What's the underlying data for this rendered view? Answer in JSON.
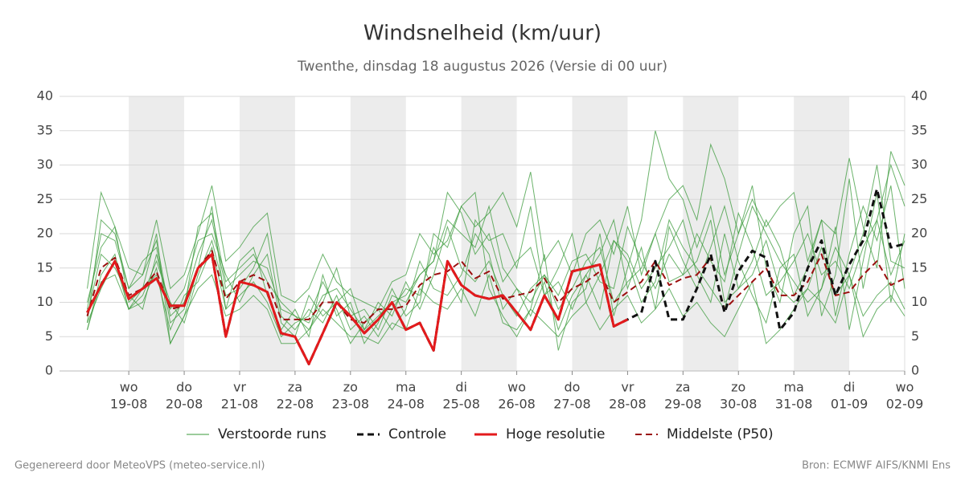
{
  "chart_data": {
    "type": "line",
    "title": "Windsnelheid (km/uur)",
    "subtitle": "Twenthe, dinsdag 18 augustus 2026 (Versie di 00 uur)",
    "footer_left": "Gegenereerd door MeteoVPS (meteo-service.nl)",
    "footer_right": "Bron: ECMWF AIFS/KNMI Ens",
    "xlim": [
      -0.25,
      15
    ],
    "ylim": [
      0,
      40
    ],
    "yticks": [
      0,
      5,
      10,
      15,
      20,
      25,
      30,
      35,
      40
    ],
    "xticks": [
      {
        "value": 1,
        "label": "wo",
        "date": "19-08"
      },
      {
        "value": 2,
        "label": "do",
        "date": "20-08"
      },
      {
        "value": 3,
        "label": "vr",
        "date": "21-08"
      },
      {
        "value": 4,
        "label": "za",
        "date": "22-08"
      },
      {
        "value": 5,
        "label": "zo",
        "date": "23-08"
      },
      {
        "value": 6,
        "label": "ma",
        "date": "24-08"
      },
      {
        "value": 7,
        "label": "di",
        "date": "25-08"
      },
      {
        "value": 8,
        "label": "wo",
        "date": "26-08"
      },
      {
        "value": 9,
        "label": "do",
        "date": "27-08"
      },
      {
        "value": 10,
        "label": "vr",
        "date": "28-08"
      },
      {
        "value": 11,
        "label": "za",
        "date": "29-08"
      },
      {
        "value": 12,
        "label": "zo",
        "date": "30-08"
      },
      {
        "value": 13,
        "label": "ma",
        "date": "31-08"
      },
      {
        "value": 14,
        "label": "di",
        "date": "01-09"
      },
      {
        "value": 15,
        "label": "wo",
        "date": "02-09"
      }
    ],
    "grid": true,
    "x": [
      0.25,
      0.5,
      0.75,
      1,
      1.25,
      1.5,
      1.75,
      2,
      2.25,
      2.5,
      2.75,
      3,
      3.25,
      3.5,
      3.75,
      4,
      4.25,
      4.5,
      4.75,
      5,
      5.25,
      5.5,
      5.75,
      6,
      6.25,
      6.5,
      6.75,
      7,
      7.25,
      7.5,
      7.75,
      8,
      8.25,
      8.5,
      8.75,
      9,
      9.25,
      9.5,
      9.75,
      10,
      10.25,
      10.5,
      10.75,
      11,
      11.25,
      11.5,
      11.75,
      12,
      12.25,
      12.5,
      12.75,
      13,
      13.25,
      13.5,
      13.75,
      14,
      14.25,
      14.5,
      14.75,
      15
    ],
    "ensemble": {
      "name": "Verstoorde runs",
      "color": "#3a9a3a",
      "members": [
        [
          7,
          22,
          20,
          12,
          14,
          19,
          8,
          10,
          17,
          22,
          12,
          14,
          16,
          15,
          9,
          8,
          7,
          11,
          12,
          9,
          6,
          8,
          10,
          11,
          14,
          16,
          22,
          20,
          18,
          24,
          15,
          12,
          10,
          14,
          9,
          12,
          16,
          18,
          10,
          13,
          15,
          20,
          13,
          14,
          16,
          22,
          10,
          12,
          14,
          19,
          12,
          10,
          12,
          18,
          11,
          14,
          20,
          30,
          16,
          15
        ],
        [
          10,
          18,
          21,
          10,
          12,
          20,
          4,
          8,
          15,
          24,
          9,
          16,
          18,
          11,
          6,
          9,
          5,
          14,
          8,
          10,
          4,
          7,
          12,
          8,
          10,
          20,
          18,
          24,
          26,
          12,
          8,
          5,
          9,
          17,
          3,
          10,
          12,
          20,
          8,
          15,
          22,
          35,
          28,
          25,
          18,
          24,
          14,
          20,
          27,
          15,
          10,
          20,
          24,
          8,
          14,
          28,
          12,
          22,
          30,
          24
        ],
        [
          6,
          14,
          17,
          9,
          11,
          16,
          10,
          7,
          14,
          19,
          11,
          12,
          15,
          20,
          8,
          6,
          9,
          7,
          11,
          6,
          8,
          5,
          9,
          12,
          11,
          18,
          14,
          10,
          22,
          19,
          20,
          15,
          24,
          11,
          13,
          9,
          14,
          17,
          22,
          12,
          18,
          9,
          21,
          16,
          12,
          18,
          24,
          16,
          11,
          7,
          15,
          17,
          8,
          12,
          21,
          6,
          16,
          26,
          10,
          20
        ],
        [
          9,
          20,
          19,
          12,
          16,
          18,
          7,
          9,
          21,
          23,
          13,
          15,
          17,
          13,
          10,
          8,
          6,
          10,
          15,
          8,
          9,
          6,
          11,
          10,
          14,
          16,
          26,
          23,
          17,
          20,
          13,
          16,
          18,
          11,
          15,
          20,
          10,
          14,
          19,
          17,
          12,
          15,
          18,
          22,
          14,
          10,
          20,
          12,
          16,
          22,
          18,
          11,
          15,
          22,
          8,
          17,
          24,
          19,
          27,
          12
        ],
        [
          7,
          12,
          16,
          9,
          12,
          14,
          6,
          11,
          13,
          18,
          9,
          11,
          13,
          10,
          5,
          7,
          8,
          13,
          9,
          4,
          7,
          9,
          6,
          9,
          16,
          12,
          11,
          14,
          20,
          17,
          9,
          12,
          8,
          13,
          6,
          11,
          14,
          9,
          19,
          16,
          10,
          13,
          22,
          18,
          15,
          12,
          9,
          17,
          24,
          20,
          16,
          13,
          10,
          12,
          18,
          14,
          8,
          11,
          13,
          9
        ],
        [
          12,
          26,
          21,
          15,
          14,
          22,
          12,
          14,
          20,
          27,
          16,
          18,
          21,
          23,
          11,
          10,
          12,
          17,
          13,
          11,
          10,
          9,
          13,
          14,
          20,
          17,
          19,
          24,
          21,
          23,
          26,
          21,
          29,
          16,
          19,
          14,
          20,
          22,
          17,
          24,
          14,
          20,
          25,
          27,
          22,
          33,
          28,
          20,
          25,
          21,
          24,
          26,
          16,
          22,
          20,
          31,
          21,
          15,
          32,
          27
        ],
        [
          8,
          17,
          15,
          11,
          9,
          17,
          9,
          12,
          19,
          20,
          14,
          10,
          14,
          17,
          7,
          5,
          11,
          8,
          10,
          12,
          6,
          10,
          8,
          13,
          9,
          14,
          21,
          15,
          13,
          16,
          11,
          8,
          12,
          14,
          11,
          16,
          17,
          13,
          12,
          21,
          16,
          12,
          17,
          14,
          20,
          16,
          13,
          23,
          18,
          11,
          13,
          16,
          20,
          14,
          16,
          12,
          18,
          22,
          14,
          19
        ],
        [
          6,
          13,
          14,
          9,
          10,
          15,
          4,
          8,
          12,
          14,
          8,
          9,
          11,
          9,
          4,
          4,
          6,
          9,
          7,
          5,
          5,
          4,
          7,
          6,
          12,
          10,
          9,
          12,
          8,
          14,
          7,
          6,
          9,
          7,
          5,
          8,
          10,
          6,
          9,
          11,
          7,
          9,
          12,
          8,
          10,
          7,
          5,
          9,
          13,
          4,
          6,
          9,
          12,
          10,
          7,
          14,
          5,
          9,
          11,
          8
        ]
      ]
    },
    "series": [
      {
        "name": "Controle",
        "color": "#111111",
        "dash": true,
        "values": [
          8.5,
          12.5,
          16,
          10.5,
          12,
          13.5,
          9.5,
          9.5,
          15,
          17,
          5,
          13,
          12.5,
          11.5,
          5.5,
          5,
          1,
          5.5,
          10,
          8,
          5.5,
          7.5,
          10,
          6,
          7,
          3,
          16,
          12.5,
          11,
          10.5,
          11,
          8.5,
          6,
          11,
          7.5,
          14.5,
          15,
          15.5,
          6.5,
          7.5,
          8.5,
          16,
          7.5,
          7.5,
          12,
          17,
          8.5,
          14.5,
          17.5,
          16.5,
          6,
          8.5,
          15,
          19,
          11,
          15.5,
          19,
          26.5,
          18,
          18.5
        ]
      },
      {
        "name": "Hoge resolutie",
        "color": "#e31a1c",
        "dash": false,
        "values": [
          8.5,
          12.5,
          16,
          10.5,
          12,
          13.5,
          9.5,
          9.5,
          15,
          17,
          5,
          13,
          12.5,
          11.5,
          5.5,
          5,
          1,
          5.5,
          10,
          8,
          5.5,
          7.5,
          10,
          6,
          7,
          3,
          16,
          12.5,
          11,
          10.5,
          11,
          8.5,
          6,
          11,
          7.5,
          14.5,
          15,
          15.5,
          6.5,
          7.5,
          null,
          null,
          null,
          null,
          null,
          null,
          null,
          null,
          null,
          null,
          null,
          null,
          null,
          null,
          null,
          null,
          null,
          null,
          null,
          null
        ]
      },
      {
        "name": "Middelste (P50)",
        "color": "#9b0f0f",
        "dash": true,
        "values": [
          8,
          15,
          16.5,
          11,
          12,
          14.5,
          9,
          9.5,
          15,
          17.5,
          10.5,
          13,
          14,
          13,
          7.5,
          7.5,
          7.5,
          10,
          10,
          7.5,
          7,
          9,
          9,
          9.5,
          12.5,
          14,
          14.5,
          16,
          13.5,
          14.5,
          10.5,
          11,
          11.5,
          13.5,
          10,
          12,
          13,
          14.5,
          10,
          11.5,
          13,
          16,
          12.5,
          13.5,
          14,
          16.5,
          9,
          11,
          13,
          15,
          11,
          11,
          13,
          17,
          11,
          11.5,
          14,
          16,
          12.5,
          13.5
        ]
      }
    ]
  }
}
